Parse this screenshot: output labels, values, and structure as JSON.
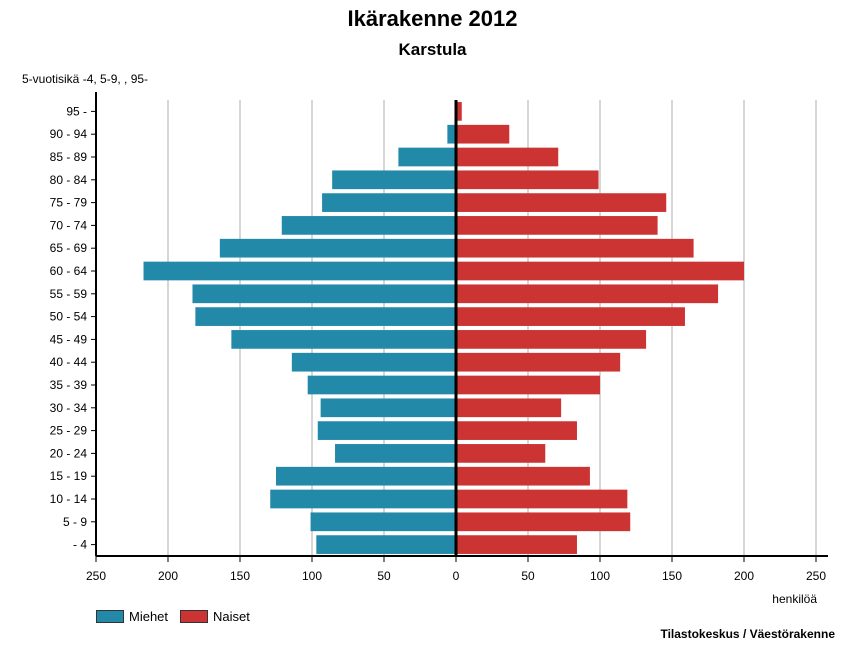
{
  "title": "Ikärakenne 2012",
  "subtitle": "Karstula",
  "source": "Tilastokeskus / Väestörakenne",
  "chart_data": {
    "type": "bar",
    "orientation": "horizontal",
    "title": "Ikärakenne 2012",
    "subtitle": "Karstula",
    "ylabel": "5-vuotisikä -4, 5-9, , 95-",
    "xlabel": "henkilöä",
    "xlim": [
      -250,
      250
    ],
    "xticks": [
      -250,
      -200,
      -150,
      -100,
      -50,
      0,
      50,
      100,
      150,
      200,
      250
    ],
    "xtick_labels": [
      "250",
      "200",
      "150",
      "100",
      "50",
      "0",
      "50",
      "100",
      "150",
      "200",
      "250"
    ],
    "grid": true,
    "legend_placement": "bottom-left",
    "categories": [
      "95 -",
      "90 - 94",
      "85 - 89",
      "80 - 84",
      "75 - 79",
      "70 - 74",
      "65 - 69",
      "60 - 64",
      "55 - 59",
      "50 - 54",
      "45 - 49",
      "40 - 44",
      "35 - 39",
      "30 - 34",
      "25 - 29",
      "20 - 24",
      "15 - 19",
      "10 - 14",
      "5 - 9",
      "- 4"
    ],
    "series": [
      {
        "name": "Miehet",
        "color": "#2389a9",
        "values": [
          0,
          6,
          40,
          86,
          93,
          121,
          164,
          217,
          183,
          181,
          156,
          114,
          103,
          94,
          96,
          84,
          125,
          129,
          101,
          97
        ]
      },
      {
        "name": "Naiset",
        "color": "#cc3333",
        "values": [
          4,
          37,
          71,
          99,
          146,
          140,
          165,
          200,
          182,
          159,
          132,
          114,
          100,
          73,
          84,
          62,
          93,
          119,
          121,
          84
        ]
      }
    ]
  }
}
